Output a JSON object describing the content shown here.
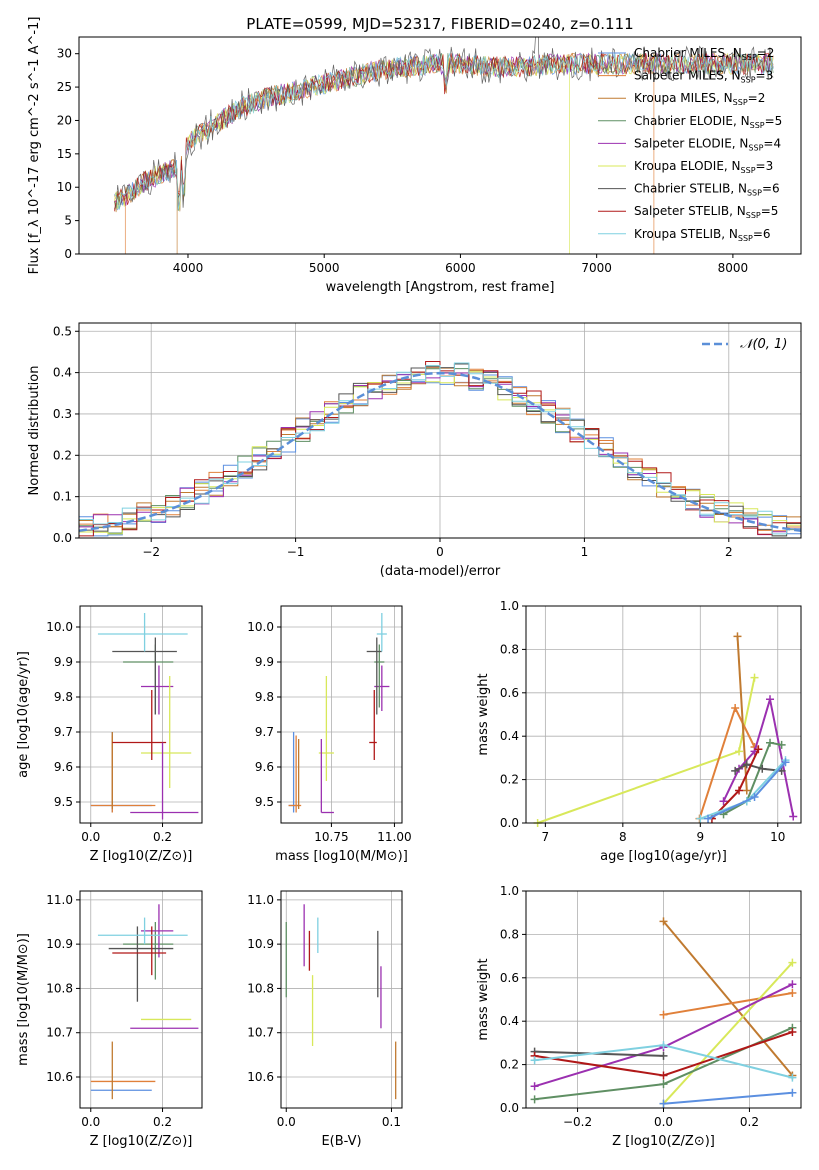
{
  "figure": {
    "title": "PLATE=0599, MJD=52317, FIBERID=0240, z=0.111"
  },
  "colors": {
    "Chabrier MILES": "#5b8fe0",
    "Salpeter MILES": "#e0803a",
    "Kroupa MILES": "#c07a30",
    "Chabrier ELODIE": "#5f8f63",
    "Salpeter ELODIE": "#9b30b0",
    "Kroupa ELODIE": "#d8e85a",
    "Chabrier STELIB": "#555555",
    "Salpeter STELIB": "#b01818",
    "Kroupa STELIB": "#7fd0e0",
    "gaussian": "#5b8fd8"
  },
  "chart_data": [
    {
      "type": "line",
      "panel": "spectrum",
      "xlabel": "wavelength [Angstrom, rest frame]",
      "ylabel": "Flux [f_λ 10^-17 erg cm^-2 s^-1 A^-1]",
      "xlim": [
        3200,
        8500
      ],
      "ylim": [
        0,
        32.5
      ],
      "xticks": [
        4000,
        5000,
        6000,
        7000,
        8000
      ],
      "yticks": [
        0,
        5,
        10,
        15,
        20,
        25,
        30
      ],
      "legend": "top-right",
      "series": [
        {
          "name": "Chabrier MILES",
          "nssp": "2"
        },
        {
          "name": "Salpeter MILES",
          "nssp": "3"
        },
        {
          "name": "Kroupa MILES",
          "nssp": "2"
        },
        {
          "name": "Chabrier ELODIE",
          "nssp": "5"
        },
        {
          "name": "Salpeter ELODIE",
          "nssp": "4"
        },
        {
          "name": "Kroupa ELODIE",
          "nssp": "3"
        },
        {
          "name": "Chabrier STELIB",
          "nssp": "6"
        },
        {
          "name": "Salpeter STELIB",
          "nssp": "5"
        },
        {
          "name": "Kroupa STELIB",
          "nssp": "6"
        }
      ],
      "continuum": {
        "x": [
          3450,
          3600,
          3700,
          3800,
          3950,
          4000,
          4200,
          4400,
          4600,
          4800,
          5000,
          5200,
          5400,
          5600,
          5800,
          6000,
          6200,
          6400,
          6600,
          6800,
          7000,
          7200,
          7400,
          7600,
          7800,
          8000,
          8200,
          8300
        ],
        "y": [
          7.5,
          9.5,
          11,
          12,
          13,
          17,
          19.5,
          22,
          23.5,
          24.5,
          25.5,
          26.5,
          27.5,
          28,
          28.5,
          28.5,
          28,
          28,
          28.3,
          28.5,
          28.5,
          28.5,
          28.5,
          28.5,
          28.5,
          28.5,
          28.5,
          28.5
        ]
      }
    },
    {
      "type": "line",
      "panel": "residual-histogram",
      "xlabel": "(data-model)/error",
      "ylabel": "Normed distribution",
      "xlim": [
        -2.5,
        2.5
      ],
      "ylim": [
        0,
        0.52
      ],
      "xticks": [
        -2,
        -1,
        0,
        1,
        2
      ],
      "yticks": [
        0.0,
        0.1,
        0.2,
        0.3,
        0.4,
        0.5
      ],
      "legend": "top-right",
      "gaussian_label": "𝒩(0, 1)"
    },
    {
      "type": "scatter",
      "panel": "age-vs-Z",
      "xlabel": "Z [log10(Z/Z⊙)]",
      "ylabel": "age [log10(age/yr)]",
      "xlim": [
        -0.03,
        0.31
      ],
      "ylim": [
        9.44,
        10.06
      ],
      "xticks": [
        0.0,
        0.2
      ],
      "yticks": [
        9.5,
        9.6,
        9.7,
        9.8,
        9.9,
        10.0
      ],
      "points": [
        {
          "series": "Chabrier MILES",
          "x": 0.06,
          "xerr": [
            0.06,
            0.11
          ],
          "y": 9.49,
          "yerr": [
            0.02,
            0.21
          ]
        },
        {
          "series": "Salpeter MILES",
          "x": 0.06,
          "xerr": [
            0.06,
            0.12
          ],
          "y": 9.49,
          "yerr": [
            0.02,
            0.2
          ]
        },
        {
          "series": "Kroupa MILES",
          "x": 0.06,
          "xerr": [
            0.0,
            0.0
          ],
          "y": 9.6,
          "yerr": [
            0.12,
            0.1
          ]
        },
        {
          "series": "Chabrier ELODIE",
          "x": 0.18,
          "xerr": [
            0.09,
            0.05
          ],
          "y": 9.9,
          "yerr": [
            0.15,
            0.05
          ]
        },
        {
          "series": "Salpeter ELODIE",
          "x": 0.19,
          "xerr": [
            0.05,
            0.04
          ],
          "y": 9.83,
          "yerr": [
            0.08,
            0.06
          ]
        },
        {
          "series": "Kroupa ELODIE",
          "x": 0.22,
          "xerr": [
            0.08,
            0.06
          ],
          "y": 9.64,
          "yerr": [
            0.1,
            0.22
          ]
        },
        {
          "series": "Chabrier STELIB",
          "x": 0.18,
          "xerr": [
            0.12,
            0.06
          ],
          "y": 9.93,
          "yerr": [
            0.18,
            0.04
          ]
        },
        {
          "series": "Salpeter STELIB",
          "x": 0.17,
          "xerr": [
            0.11,
            0.04
          ],
          "y": 9.67,
          "yerr": [
            0.05,
            0.15
          ]
        },
        {
          "series": "Kroupa STELIB",
          "x": 0.15,
          "xerr": [
            0.13,
            0.12
          ],
          "y": 9.98,
          "yerr": [
            0.05,
            0.06
          ]
        },
        {
          "series": "Salpeter ELODIE",
          "x": 0.2,
          "xerr": [
            0.09,
            0.1
          ],
          "y": 9.47,
          "yerr": [
            0.02,
            0.2
          ]
        }
      ]
    },
    {
      "type": "scatter",
      "panel": "age-vs-mass",
      "xlabel": "mass [log10(M/M⊙)]",
      "ylabel": "",
      "xlim": [
        10.55,
        11.03
      ],
      "ylim": [
        9.44,
        10.06
      ],
      "xticks": [
        10.75,
        11.0
      ],
      "yticks": [
        9.5,
        9.6,
        9.7,
        9.8,
        9.9,
        10.0
      ],
      "points": [
        {
          "series": "Chabrier MILES",
          "x": 10.6,
          "xerr": [
            0.02,
            0.02
          ],
          "y": 9.49,
          "yerr": [
            0.02,
            0.21
          ]
        },
        {
          "series": "Salpeter MILES",
          "x": 10.61,
          "xerr": [
            0.03,
            0.02
          ],
          "y": 9.49,
          "yerr": [
            0.02,
            0.2
          ]
        },
        {
          "series": "Kroupa MILES",
          "x": 10.62,
          "xerr": [
            0.0,
            0.0
          ],
          "y": 9.58,
          "yerr": [
            0.1,
            0.1
          ]
        },
        {
          "series": "Kroupa ELODIE",
          "x": 10.73,
          "xerr": [
            0.03,
            0.03
          ],
          "y": 9.64,
          "yerr": [
            0.08,
            0.22
          ]
        },
        {
          "series": "Salpeter ELODIE",
          "x": 10.95,
          "xerr": [
            0.03,
            0.03
          ],
          "y": 9.83,
          "yerr": [
            0.07,
            0.06
          ]
        },
        {
          "series": "Chabrier ELODIE",
          "x": 10.94,
          "xerr": [
            0.02,
            0.02
          ],
          "y": 9.9,
          "yerr": [
            0.13,
            0.05
          ]
        },
        {
          "series": "Chabrier STELIB",
          "x": 10.93,
          "xerr": [
            0.04,
            0.02
          ],
          "y": 9.93,
          "yerr": [
            0.18,
            0.04
          ]
        },
        {
          "series": "Salpeter STELIB",
          "x": 10.92,
          "xerr": [
            0.02,
            0.01
          ],
          "y": 9.67,
          "yerr": [
            0.05,
            0.15
          ]
        },
        {
          "series": "Kroupa STELIB",
          "x": 10.95,
          "xerr": [
            0.02,
            0.02
          ],
          "y": 9.98,
          "yerr": [
            0.05,
            0.06
          ]
        },
        {
          "series": "Salpeter ELODIE",
          "x": 10.71,
          "xerr": [
            0.0,
            0.05
          ],
          "y": 9.47,
          "yerr": [
            0.0,
            0.21
          ]
        }
      ]
    },
    {
      "type": "line",
      "panel": "mass-weight-vs-age",
      "xlabel": "age [log10(age/yr)]",
      "ylabel": "mass weight",
      "xlim": [
        6.75,
        10.3
      ],
      "ylim": [
        0,
        1.0
      ],
      "xticks": [
        7,
        8,
        9,
        10
      ],
      "yticks": [
        0.0,
        0.2,
        0.4,
        0.6,
        0.8,
        1.0
      ],
      "series": [
        {
          "name": "Kroupa ELODIE",
          "x": [
            6.9,
            9.5,
            9.7
          ],
          "y": [
            0.0,
            0.33,
            0.67
          ]
        },
        {
          "name": "Salpeter MILES",
          "x": [
            8.99,
            9.45,
            9.7
          ],
          "y": [
            0.02,
            0.53,
            0.35
          ]
        },
        {
          "name": "Kroupa MILES",
          "x": [
            9.48,
            9.6
          ],
          "y": [
            0.86,
            0.15
          ]
        },
        {
          "name": "Salpeter ELODIE",
          "x": [
            9.3,
            9.5,
            9.7,
            9.9,
            10.2
          ],
          "y": [
            0.1,
            0.25,
            0.33,
            0.57,
            0.03
          ]
        },
        {
          "name": "Chabrier ELODIE",
          "x": [
            9.3,
            9.6,
            9.9,
            10.05
          ],
          "y": [
            0.04,
            0.1,
            0.37,
            0.36
          ]
        },
        {
          "name": "Chabrier STELIB",
          "x": [
            9.45,
            9.6,
            9.8,
            10.05
          ],
          "y": [
            0.24,
            0.27,
            0.25,
            0.24
          ]
        },
        {
          "name": "Salpeter STELIB",
          "x": [
            9.15,
            9.5,
            9.75
          ],
          "y": [
            0.02,
            0.15,
            0.34
          ]
        },
        {
          "name": "Kroupa STELIB",
          "x": [
            9.0,
            9.6,
            10.1
          ],
          "y": [
            0.02,
            0.1,
            0.29
          ]
        },
        {
          "name": "Chabrier MILES",
          "x": [
            9.1,
            9.7,
            10.1
          ],
          "y": [
            0.02,
            0.12,
            0.28
          ]
        }
      ]
    },
    {
      "type": "scatter",
      "panel": "mass-vs-Z",
      "xlabel": "Z [log10(Z/Z⊙)]",
      "ylabel": "mass [log10(M/M⊙)]",
      "xlim": [
        -0.03,
        0.31
      ],
      "ylim": [
        10.53,
        11.02
      ],
      "xticks": [
        0.0,
        0.2
      ],
      "yticks": [
        10.6,
        10.7,
        10.8,
        10.9,
        11.0
      ],
      "points": [
        {
          "series": "Chabrier MILES",
          "x": 0.06,
          "xerr": [
            0.06,
            0.11
          ],
          "y": 10.57,
          "yerr": [
            0.0,
            0.0
          ]
        },
        {
          "series": "Salpeter MILES",
          "x": 0.06,
          "xerr": [
            0.06,
            0.12
          ],
          "y": 10.59,
          "yerr": [
            0.0,
            0.0
          ]
        },
        {
          "series": "Kroupa MILES",
          "x": 0.06,
          "xerr": [
            0.0,
            0.0
          ],
          "y": 10.59,
          "yerr": [
            0.04,
            0.09
          ]
        },
        {
          "series": "Kroupa ELODIE",
          "x": 0.22,
          "xerr": [
            0.08,
            0.06
          ],
          "y": 10.73,
          "yerr": [
            0.0,
            0.0
          ]
        },
        {
          "series": "Salpeter ELODIE",
          "x": 0.2,
          "xerr": [
            0.09,
            0.1
          ],
          "y": 10.71,
          "yerr": [
            0.0,
            0.0
          ]
        },
        {
          "series": "Chabrier ELODIE",
          "x": 0.18,
          "xerr": [
            0.09,
            0.05
          ],
          "y": 10.9,
          "yerr": [
            0.08,
            0.05
          ]
        },
        {
          "series": "Salpeter ELODIE",
          "x": 0.19,
          "xerr": [
            0.05,
            0.04
          ],
          "y": 10.93,
          "yerr": [
            0.06,
            0.06
          ]
        },
        {
          "series": "Chabrier STELIB",
          "x": 0.13,
          "xerr": [
            0.08,
            0.1
          ],
          "y": 10.89,
          "yerr": [
            0.12,
            0.05
          ]
        },
        {
          "series": "Salpeter STELIB",
          "x": 0.17,
          "xerr": [
            0.11,
            0.04
          ],
          "y": 10.88,
          "yerr": [
            0.05,
            0.06
          ]
        },
        {
          "series": "Kroupa STELIB",
          "x": 0.15,
          "xerr": [
            0.13,
            0.12
          ],
          "y": 10.92,
          "yerr": [
            0.02,
            0.04
          ]
        }
      ]
    },
    {
      "type": "scatter",
      "panel": "mass-vs-ebv",
      "xlabel": "E(B-V)",
      "ylabel": "",
      "xlim": [
        -0.005,
        0.11
      ],
      "ylim": [
        10.53,
        11.02
      ],
      "xticks": [
        0.0,
        0.1
      ],
      "yticks": [
        10.6,
        10.7,
        10.8,
        10.9,
        11.0
      ],
      "points": [
        {
          "series": "Chabrier ELODIE",
          "x": 0.0,
          "xerr": [
            0,
            0
          ],
          "y": 10.86,
          "yerr": [
            0.08,
            0.09
          ]
        },
        {
          "series": "Salpeter ELODIE",
          "x": 0.017,
          "xerr": [
            0,
            0
          ],
          "y": 10.92,
          "yerr": [
            0.07,
            0.07
          ]
        },
        {
          "series": "Salpeter STELIB",
          "x": 0.022,
          "xerr": [
            0,
            0
          ],
          "y": 10.89,
          "yerr": [
            0.05,
            0.04
          ]
        },
        {
          "series": "Kroupa ELODIE",
          "x": 0.025,
          "xerr": [
            0,
            0
          ],
          "y": 10.75,
          "yerr": [
            0.08,
            0.08
          ]
        },
        {
          "series": "Kroupa STELIB",
          "x": 0.03,
          "xerr": [
            0,
            0
          ],
          "y": 10.92,
          "yerr": [
            0.04,
            0.04
          ]
        },
        {
          "series": "Chabrier STELIB",
          "x": 0.087,
          "xerr": [
            0,
            0
          ],
          "y": 10.86,
          "yerr": [
            0.08,
            0.07
          ]
        },
        {
          "series": "Salpeter ELODIE",
          "x": 0.09,
          "xerr": [
            0,
            0
          ],
          "y": 10.78,
          "yerr": [
            0.07,
            0.07
          ]
        },
        {
          "series": "Kroupa MILES",
          "x": 0.104,
          "xerr": [
            0,
            0
          ],
          "y": 10.6,
          "yerr": [
            0.05,
            0.08
          ]
        }
      ]
    },
    {
      "type": "line",
      "panel": "mass-weight-vs-Z",
      "xlabel": "Z [log10(Z/Z⊙)]",
      "ylabel": "mass weight",
      "xlim": [
        -0.32,
        0.32
      ],
      "ylim": [
        0,
        1.0
      ],
      "xticks": [
        -0.2,
        0.0,
        0.2
      ],
      "yticks": [
        0.0,
        0.2,
        0.4,
        0.6,
        0.8,
        1.0
      ],
      "series": [
        {
          "name": "Kroupa MILES",
          "x": [
            0.0,
            0.3
          ],
          "y": [
            0.86,
            0.15
          ]
        },
        {
          "name": "Salpeter MILES",
          "x": [
            0.0,
            0.3
          ],
          "y": [
            0.43,
            0.53
          ]
        },
        {
          "name": "Kroupa ELODIE",
          "x": [
            0.0,
            0.3
          ],
          "y": [
            0.02,
            0.67
          ]
        },
        {
          "name": "Salpeter ELODIE",
          "x": [
            -0.3,
            0.0,
            0.3
          ],
          "y": [
            0.1,
            0.28,
            0.57
          ]
        },
        {
          "name": "Chabrier ELODIE",
          "x": [
            -0.3,
            0.0,
            0.3
          ],
          "y": [
            0.04,
            0.11,
            0.37
          ]
        },
        {
          "name": "Chabrier STELIB",
          "x": [
            -0.3,
            0.0
          ],
          "y": [
            0.26,
            0.24
          ]
        },
        {
          "name": "Salpeter STELIB",
          "x": [
            -0.3,
            0.0,
            0.3
          ],
          "y": [
            0.24,
            0.15,
            0.35
          ]
        },
        {
          "name": "Kroupa STELIB",
          "x": [
            -0.3,
            0.0,
            0.3
          ],
          "y": [
            0.22,
            0.29,
            0.14
          ]
        },
        {
          "name": "Chabrier MILES",
          "x": [
            0.0,
            0.3
          ],
          "y": [
            0.02,
            0.07
          ]
        }
      ]
    }
  ]
}
